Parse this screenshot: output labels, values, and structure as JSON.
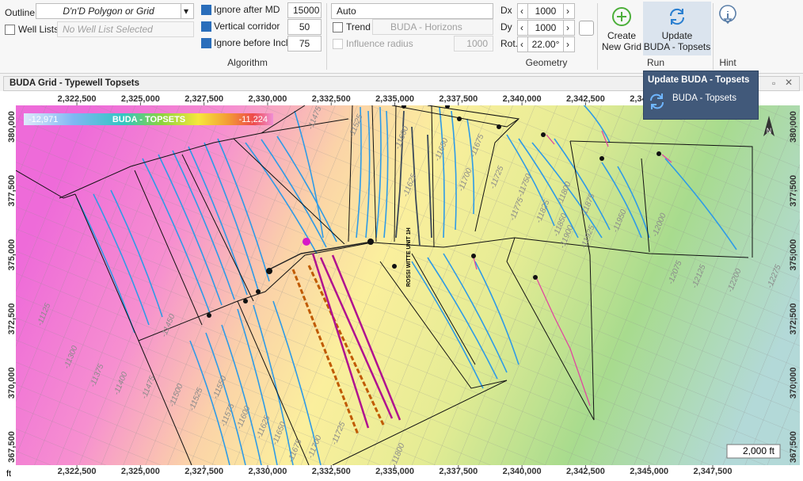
{
  "toolbar": {
    "outline": {
      "label": "Outline",
      "value": "D'n'D Polygon or Grid"
    },
    "well_lists": {
      "label": "Well Lists",
      "value": "No Well List Selected"
    },
    "algorithm": {
      "group": "Algorithm",
      "fields": [
        {
          "label": "Ignore after MD",
          "value": "15000"
        },
        {
          "label": "Vertical corridor",
          "value": "50"
        },
        {
          "label": "Ignore before Incl.",
          "value": "75"
        }
      ]
    },
    "trend": {
      "method": "Auto",
      "label": "Trend",
      "value": "BUDA - Horizons",
      "radius_label": "Influence radius",
      "radius": "1000"
    },
    "geometry": {
      "group": "Geometry",
      "fields": [
        {
          "label": "Dx",
          "value": "1000"
        },
        {
          "label": "Dy",
          "value": "1000"
        },
        {
          "label": "Rot.",
          "value": "22.00°"
        }
      ]
    },
    "run": {
      "group": "Run",
      "create": [
        "Create",
        "New Grid"
      ],
      "update": [
        "Update",
        "BUDA - Topsets"
      ]
    },
    "hint": {
      "group": "Hint"
    }
  },
  "panel": {
    "title": "BUDA Grid - Typewell Topsets"
  },
  "tooltip": {
    "title": "Update BUDA - Topsets",
    "item": "BUDA - Topsets"
  },
  "map": {
    "xlim": [
      2320100,
      2350925
    ],
    "ylim": [
      366790,
      380835
    ],
    "xticks": [
      {
        "value": 2322500,
        "label": "2,322,500"
      },
      {
        "value": 2325000,
        "label": "2,325,000"
      },
      {
        "value": 2327500,
        "label": "2,327,500"
      },
      {
        "value": 2330000,
        "label": "2,330,000"
      },
      {
        "value": 2332500,
        "label": "2,332,500"
      },
      {
        "value": 2335000,
        "label": "2,335,000"
      },
      {
        "value": 2337500,
        "label": "2,337,500"
      },
      {
        "value": 2340000,
        "label": "2,340,000"
      },
      {
        "value": 2342500,
        "label": "2,342,500"
      },
      {
        "value": 2345000,
        "label": "2,345,000"
      },
      {
        "value": 2347500,
        "label": "2,347,500"
      }
    ],
    "yticks": [
      {
        "value": 380000,
        "label": "380,000"
      },
      {
        "value": 377500,
        "label": "377,500"
      },
      {
        "value": 375000,
        "label": "375,000"
      },
      {
        "value": 372500,
        "label": "372,500"
      },
      {
        "value": 370000,
        "label": "370,000"
      },
      {
        "value": 367500,
        "label": "367,500"
      }
    ],
    "unit": "ft",
    "scale_bar": "2,000 ft",
    "colorbar": {
      "min": "-12,971",
      "title": "BUDA - TOPSETS",
      "max": "-11,224"
    },
    "well_label": "ROSSI WITTE UNIT 1H",
    "contour_labels": [
      "-11125",
      "-11300",
      "-11375",
      "-11400",
      "-11450",
      "-11475",
      "-11500",
      "-11525",
      "-11550",
      "-11575",
      "-11600",
      "-11625",
      "-11650",
      "-11675",
      "-11700",
      "-11725",
      "-11475",
      "-11525",
      "-11600",
      "-11625",
      "-11650",
      "-11675",
      "-11700",
      "-11725",
      "-11750",
      "-11775",
      "-11800",
      "-11825",
      "-11850",
      "-11875",
      "-11900",
      "-11925",
      "-11950",
      "-12000",
      "-12075",
      "-12125",
      "-12200",
      "-12275",
      "-11800"
    ]
  }
}
